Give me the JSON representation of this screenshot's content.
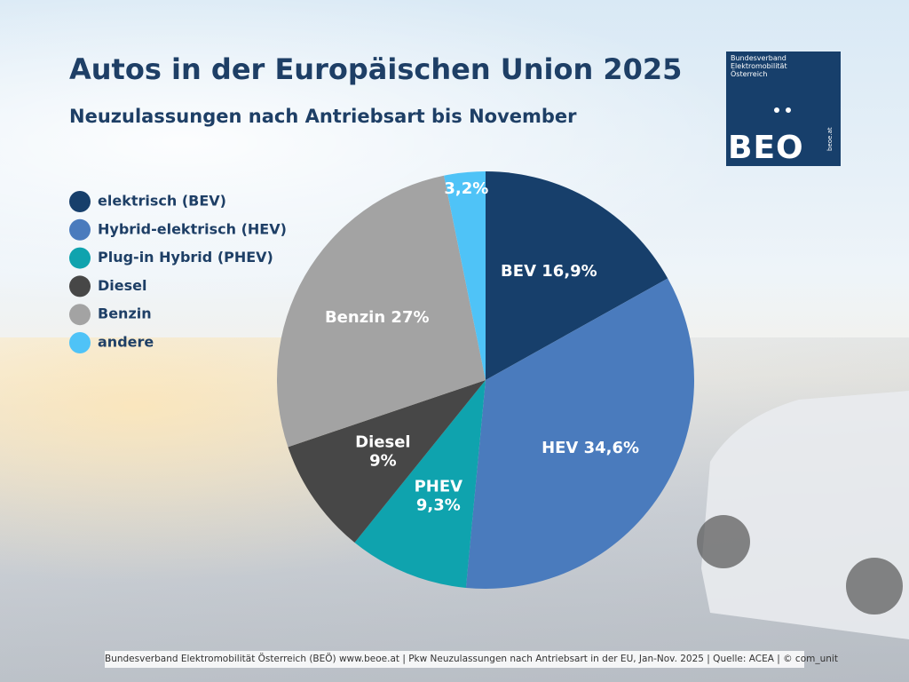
{
  "chart_data": {
    "type": "pie",
    "title": "Autos in der Europäischen Union 2025",
    "subtitle": "Neuzulassungen nach Antriebsart bis November",
    "categories": [
      "elektrisch (BEV)",
      "Hybrid-elektrisch (HEV)",
      "Plug-in Hybrid (PHEV)",
      "Diesel",
      "Benzin",
      "andere"
    ],
    "values": [
      16.9,
      34.6,
      9.3,
      9,
      27,
      3.2
    ],
    "value_labels": [
      "BEV 16,9%",
      "HEV 34,6%",
      "PHEV\n9,3%",
      "Diesel\n9%",
      "Benzin 27%",
      "3,2%"
    ],
    "colors": [
      "#173f6b",
      "#4a7bbd",
      "#0fa3ae",
      "#474747",
      "#a3a3a3",
      "#4fc3f7"
    ],
    "legend": "left"
  },
  "logo": {
    "name": "Bundesverband\nElektromobilität\nÖsterreich",
    "acronym": "BEO",
    "url": "beoe.at"
  },
  "footer": "Bundesverband Elektromobilität Österreich (BEÖ) www.beoe.at | Pkw Neuzulassungen nach Antriebsart in der EU, Jan-Nov. 2025 | Quelle: ACEA | © com_unit"
}
